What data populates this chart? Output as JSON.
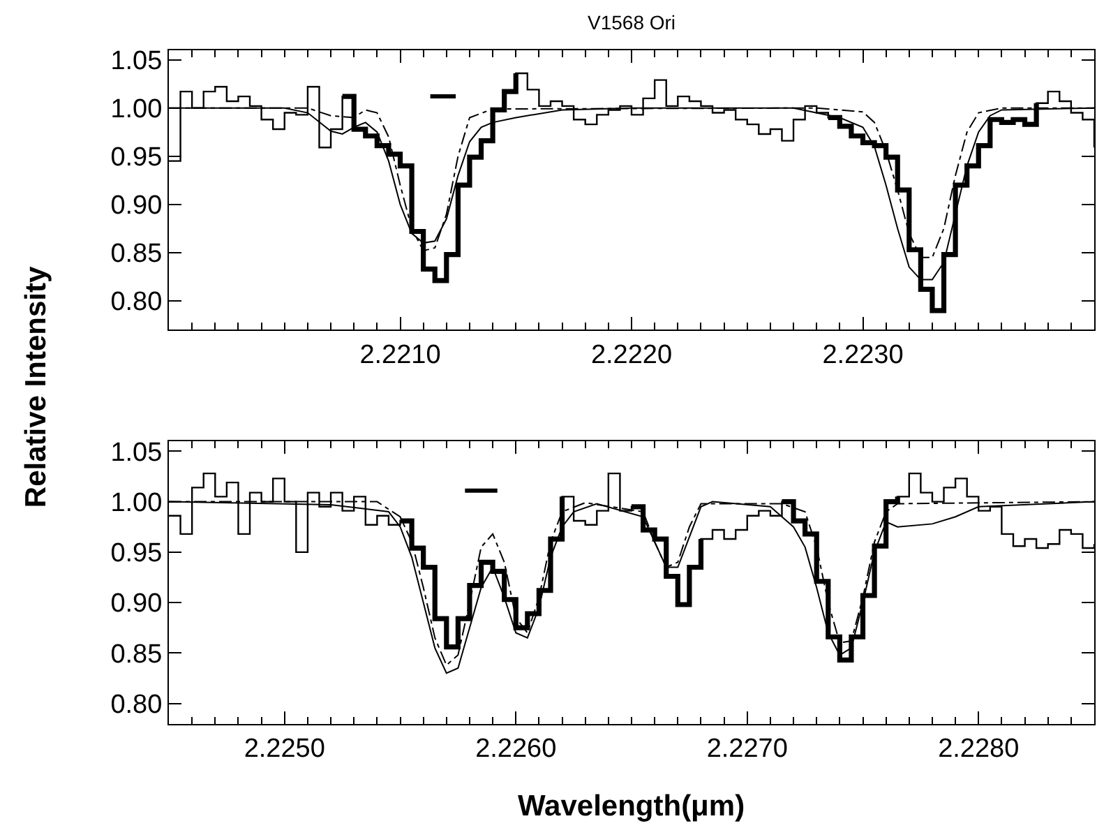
{
  "chart_data": [
    {
      "type": "step",
      "title": "V1568 Ori",
      "ylabel": "Relative Intensity",
      "marker": "none",
      "xlim": [
        2.22,
        2.224
      ],
      "ylim": [
        0.77,
        1.06
      ],
      "xticks": [
        {
          "value": 2.221,
          "label": "2.2210"
        },
        {
          "value": 2.222,
          "label": "2.2220"
        },
        {
          "value": 2.223,
          "label": "2.2230"
        }
      ],
      "yticks": [
        {
          "value": 0.8,
          "label": "0.80"
        },
        {
          "value": 0.85,
          "label": "0.85"
        },
        {
          "value": 0.9,
          "label": "0.90"
        },
        {
          "value": 0.95,
          "label": "0.95"
        },
        {
          "value": 1.0,
          "label": "1.00"
        },
        {
          "value": 1.05,
          "label": "1.05"
        }
      ],
      "x": [
        2.22,
        2.22005,
        2.2201,
        2.22015,
        2.2202,
        2.22025,
        2.2203,
        2.22035,
        2.2204,
        2.22045,
        2.2205,
        2.22055,
        2.2206,
        2.22065,
        2.2207,
        2.22075,
        2.2208,
        2.22085,
        2.2209,
        2.22095,
        2.221,
        2.22105,
        2.2211,
        2.22115,
        2.2212,
        2.22125,
        2.2213,
        2.22135,
        2.2214,
        2.22145,
        2.2215,
        2.22155,
        2.2216,
        2.22165,
        2.2217,
        2.22175,
        2.2218,
        2.22185,
        2.2219,
        2.22195,
        2.222,
        2.22205,
        2.2221,
        2.22215,
        2.2222,
        2.22225,
        2.2223,
        2.22235,
        2.2224,
        2.22245,
        2.2225,
        2.22255,
        2.2226,
        2.22265,
        2.2227,
        2.22275,
        2.2228,
        2.22285,
        2.2229,
        2.22295,
        2.223,
        2.22305,
        2.2231,
        2.22315,
        2.2232,
        2.22325,
        2.2233,
        2.22335,
        2.2234,
        2.22345,
        2.2235,
        2.22355,
        2.2236,
        2.22365,
        2.2237,
        2.22375,
        2.2238,
        2.22385,
        2.2239,
        2.22395,
        2.224
      ],
      "series": [
        {
          "color": "#000000",
          "values": [
            0.945,
            1.017,
            1.0,
            1.017,
            1.022,
            1.007,
            1.012,
            1.002,
            0.988,
            0.978,
            0.995,
            0.993,
            1.022,
            0.959,
            0.978,
            1.012,
            0.978,
            0.971,
            0.961,
            0.952,
            0.94,
            0.872,
            0.833,
            0.821,
            0.848,
            0.92,
            0.949,
            0.966,
            0.998,
            1.017,
            1.036,
            1.019,
            1.002,
            1.007,
            1.002,
            0.988,
            0.983,
            0.993,
            0.998,
            1.002,
            0.993,
            1.01,
            1.029,
            1.002,
            1.012,
            1.007,
            1.002,
            0.995,
            0.998,
            0.988,
            0.983,
            0.973,
            0.978,
            0.966,
            0.988,
            1.002,
            0.995,
            0.99,
            0.981,
            0.971,
            0.964,
            0.961,
            0.949,
            0.915,
            0.853,
            0.812,
            0.79,
            0.848,
            0.92,
            0.94,
            0.961,
            0.988,
            0.985,
            0.988,
            0.983,
            1.005,
            1.017,
            1.007,
            0.995,
            0.988,
            0.959
          ]
        },
        {
          "color": "#000000",
          "values": [
            null,
            null,
            null,
            null,
            null,
            null,
            null,
            null,
            null,
            null,
            null,
            null,
            null,
            null,
            null,
            1.012,
            0.978,
            0.971,
            0.961,
            0.952,
            0.94,
            0.872,
            0.833,
            0.821,
            0.848,
            0.92,
            0.949,
            0.966,
            0.998,
            1.017,
            1.036,
            null,
            null,
            null,
            null,
            null,
            null,
            null,
            null,
            null,
            null,
            null,
            null,
            null,
            null,
            null,
            null,
            null,
            null,
            null,
            null,
            null,
            null,
            null,
            null,
            null,
            null,
            0.99,
            0.981,
            0.971,
            0.964,
            0.961,
            0.949,
            0.915,
            0.853,
            0.812,
            0.79,
            0.848,
            0.92,
            0.94,
            0.961,
            0.988,
            0.985,
            0.988,
            0.983,
            1.005,
            null,
            null,
            null,
            null,
            null
          ]
        },
        {
          "type": "line",
          "color": "#000000",
          "line_style": "solid",
          "x": [
            2.22,
            2.2205,
            2.2206,
            2.2207,
            2.22075,
            2.2208,
            2.22085,
            2.2209,
            2.22095,
            2.221,
            2.22105,
            2.2211,
            2.22115,
            2.2212,
            2.22125,
            2.2213,
            2.22135,
            2.2214,
            2.2215,
            2.2217,
            2.222,
            2.2227,
            2.2229,
            2.223,
            2.22305,
            2.2231,
            2.22315,
            2.2232,
            2.22325,
            2.2233,
            2.22335,
            2.2234,
            2.22345,
            2.2235,
            2.22355,
            2.2236,
            2.224
          ],
          "values": [
            1.0,
            1.0,
            0.995,
            0.976,
            0.973,
            0.98,
            0.985,
            0.975,
            0.945,
            0.9,
            0.87,
            0.86,
            0.862,
            0.885,
            0.93,
            0.965,
            0.98,
            0.985,
            0.99,
            0.998,
            1.0,
            1.0,
            0.99,
            0.98,
            0.96,
            0.92,
            0.875,
            0.835,
            0.822,
            0.822,
            0.84,
            0.89,
            0.94,
            0.975,
            0.992,
            0.998,
            1.0
          ]
        },
        {
          "type": "line",
          "color": "#000000",
          "line_style": "dashdot",
          "x": [
            2.22,
            2.2206,
            2.2207,
            2.2208,
            2.22085,
            2.2209,
            2.22095,
            2.221,
            2.22105,
            2.2211,
            2.22115,
            2.2212,
            2.22125,
            2.2213,
            2.2214,
            2.2228,
            2.223,
            2.22305,
            2.2231,
            2.22315,
            2.2232,
            2.22325,
            2.2233,
            2.22335,
            2.2234,
            2.22345,
            2.2235,
            2.2236,
            2.224
          ],
          "values": [
            1.0,
            1.0,
            0.992,
            0.99,
            0.998,
            0.995,
            0.97,
            0.92,
            0.875,
            0.852,
            0.855,
            0.89,
            0.95,
            0.99,
            0.999,
            1.0,
            0.996,
            0.985,
            0.955,
            0.915,
            0.87,
            0.845,
            0.845,
            0.875,
            0.93,
            0.975,
            0.995,
            1.0,
            1.0
          ]
        },
        {
          "type": "line",
          "color": "#000000",
          "line_style": "solid",
          "x": [
            2.22113,
            2.22124
          ],
          "values": [
            1.012,
            1.012
          ]
        }
      ]
    },
    {
      "type": "step",
      "xlabel": "Wavelength(μm)",
      "marker": "none",
      "xlim": [
        2.2245,
        2.2285
      ],
      "ylim": [
        0.78,
        1.06
      ],
      "xticks": [
        {
          "value": 2.225,
          "label": "2.2250"
        },
        {
          "value": 2.226,
          "label": "2.2260"
        },
        {
          "value": 2.227,
          "label": "2.2270"
        },
        {
          "value": 2.228,
          "label": "2.2280"
        }
      ],
      "yticks": [
        {
          "value": 0.8,
          "label": "0.80"
        },
        {
          "value": 0.85,
          "label": "0.85"
        },
        {
          "value": 0.9,
          "label": "0.90"
        },
        {
          "value": 0.95,
          "label": "0.95"
        },
        {
          "value": 1.0,
          "label": "1.00"
        },
        {
          "value": 1.05,
          "label": "1.05"
        }
      ],
      "x": [
        2.2245,
        2.22455,
        2.2246,
        2.22465,
        2.2247,
        2.22475,
        2.2248,
        2.22485,
        2.2249,
        2.22495,
        2.225,
        2.22505,
        2.2251,
        2.22515,
        2.2252,
        2.22525,
        2.2253,
        2.22535,
        2.2254,
        2.22545,
        2.2255,
        2.22555,
        2.2256,
        2.22565,
        2.2257,
        2.22575,
        2.2258,
        2.22585,
        2.2259,
        2.22595,
        2.226,
        2.22605,
        2.2261,
        2.22615,
        2.2262,
        2.22625,
        2.2263,
        2.22635,
        2.2264,
        2.22645,
        2.2265,
        2.22655,
        2.2266,
        2.22665,
        2.2267,
        2.22675,
        2.2268,
        2.22685,
        2.2269,
        2.22695,
        2.227,
        2.22705,
        2.2271,
        2.22715,
        2.2272,
        2.22725,
        2.2273,
        2.22735,
        2.2274,
        2.22745,
        2.2275,
        2.22755,
        2.2276,
        2.22765,
        2.2277,
        2.22775,
        2.2278,
        2.22785,
        2.2279,
        2.22795,
        2.228,
        2.22805,
        2.2281,
        2.22815,
        2.2282,
        2.22825,
        2.2283,
        2.22835,
        2.2284,
        2.22845,
        2.2285
      ],
      "series": [
        {
          "color": "#000000",
          "values": [
            0.986,
            0.968,
            1.014,
            1.028,
            1.005,
            1.019,
            0.968,
            1.009,
            1.0,
            1.023,
            1.0,
            0.95,
            1.009,
            0.995,
            1.009,
            0.991,
            1.005,
            0.977,
            0.986,
            0.977,
            0.981,
            0.954,
            0.935,
            0.884,
            0.856,
            0.884,
            0.917,
            0.94,
            0.931,
            0.903,
            0.875,
            0.889,
            0.912,
            0.963,
            1.005,
            0.981,
            0.977,
            0.991,
            1.028,
            0.991,
            0.995,
            0.972,
            0.963,
            0.926,
            0.898,
            0.935,
            0.963,
            0.972,
            0.963,
            0.972,
            0.986,
            0.991,
            0.986,
            1.0,
            0.981,
            0.968,
            0.921,
            0.866,
            0.843,
            0.866,
            0.907,
            0.956,
            1.0,
            1.005,
            1.028,
            1.009,
            1.0,
            1.014,
            1.023,
            1.005,
            0.991,
            0.995,
            0.968,
            0.956,
            0.963,
            0.954,
            0.958,
            0.972,
            0.968,
            0.954,
            0.958
          ]
        },
        {
          "color": "#000000",
          "values": [
            null,
            null,
            null,
            null,
            null,
            null,
            null,
            null,
            null,
            null,
            null,
            null,
            null,
            null,
            null,
            null,
            null,
            null,
            null,
            null,
            0.981,
            0.954,
            0.935,
            0.884,
            0.856,
            0.884,
            0.917,
            0.94,
            0.931,
            0.903,
            0.875,
            0.889,
            0.912,
            0.963,
            1.005,
            null,
            null,
            null,
            null,
            null,
            0.995,
            0.972,
            0.963,
            0.926,
            0.898,
            0.935,
            0.963,
            null,
            null,
            null,
            null,
            null,
            null,
            1.0,
            0.981,
            0.968,
            0.921,
            0.866,
            0.843,
            0.866,
            0.907,
            0.956,
            1.0,
            1.005,
            null,
            null,
            null,
            null,
            null,
            null,
            null,
            null,
            null,
            null,
            null,
            null,
            null,
            null,
            null,
            null,
            null
          ]
        },
        {
          "type": "line",
          "color": "#000000",
          "line_style": "solid",
          "x": [
            2.2245,
            2.2252,
            2.22545,
            2.2255,
            2.22555,
            2.2256,
            2.22565,
            2.2257,
            2.22575,
            2.2258,
            2.22585,
            2.2259,
            2.22595,
            2.226,
            2.22605,
            2.2261,
            2.22615,
            2.2262,
            2.22625,
            2.22635,
            2.22655,
            2.2266,
            2.22665,
            2.2267,
            2.22675,
            2.2268,
            2.22685,
            2.2271,
            2.22715,
            2.2272,
            2.22725,
            2.2273,
            2.22735,
            2.2274,
            2.22745,
            2.2275,
            2.22755,
            2.2276,
            2.22765,
            2.2278,
            2.2279,
            2.228,
            2.2285
          ],
          "values": [
            1.0,
            0.997,
            0.99,
            0.975,
            0.945,
            0.9,
            0.855,
            0.83,
            0.835,
            0.875,
            0.915,
            0.935,
            0.905,
            0.87,
            0.865,
            0.895,
            0.945,
            0.975,
            0.99,
            0.998,
            0.985,
            0.96,
            0.935,
            0.935,
            0.965,
            0.995,
            1.0,
            0.995,
            0.985,
            0.975,
            0.955,
            0.915,
            0.87,
            0.848,
            0.855,
            0.9,
            0.95,
            0.98,
            0.975,
            0.978,
            0.985,
            0.995,
            1.0
          ]
        },
        {
          "type": "line",
          "color": "#000000",
          "line_style": "dashdot",
          "x": [
            2.2245,
            2.2254,
            2.2255,
            2.22555,
            2.2256,
            2.22565,
            2.2257,
            2.22575,
            2.2258,
            2.22585,
            2.2259,
            2.22595,
            2.226,
            2.22605,
            2.2261,
            2.22615,
            2.2262,
            2.2263,
            2.22655,
            2.2266,
            2.22665,
            2.2267,
            2.22675,
            2.2268,
            2.22715,
            2.22725,
            2.2273,
            2.22735,
            2.2274,
            2.22745,
            2.2275,
            2.22755,
            2.2276,
            2.22765,
            2.2285
          ],
          "values": [
            1.0,
            1.0,
            0.985,
            0.96,
            0.915,
            0.865,
            0.838,
            0.848,
            0.9,
            0.955,
            0.968,
            0.94,
            0.885,
            0.87,
            0.905,
            0.96,
            0.99,
            0.999,
            0.99,
            0.96,
            0.935,
            0.94,
            0.975,
            0.998,
            0.998,
            0.99,
            0.955,
            0.9,
            0.86,
            0.862,
            0.905,
            0.96,
            0.99,
            0.998,
            1.0
          ]
        },
        {
          "type": "line",
          "color": "#000000",
          "line_style": "solid",
          "x": [
            2.22578,
            2.22592
          ],
          "values": [
            1.011,
            1.011
          ]
        }
      ]
    }
  ]
}
